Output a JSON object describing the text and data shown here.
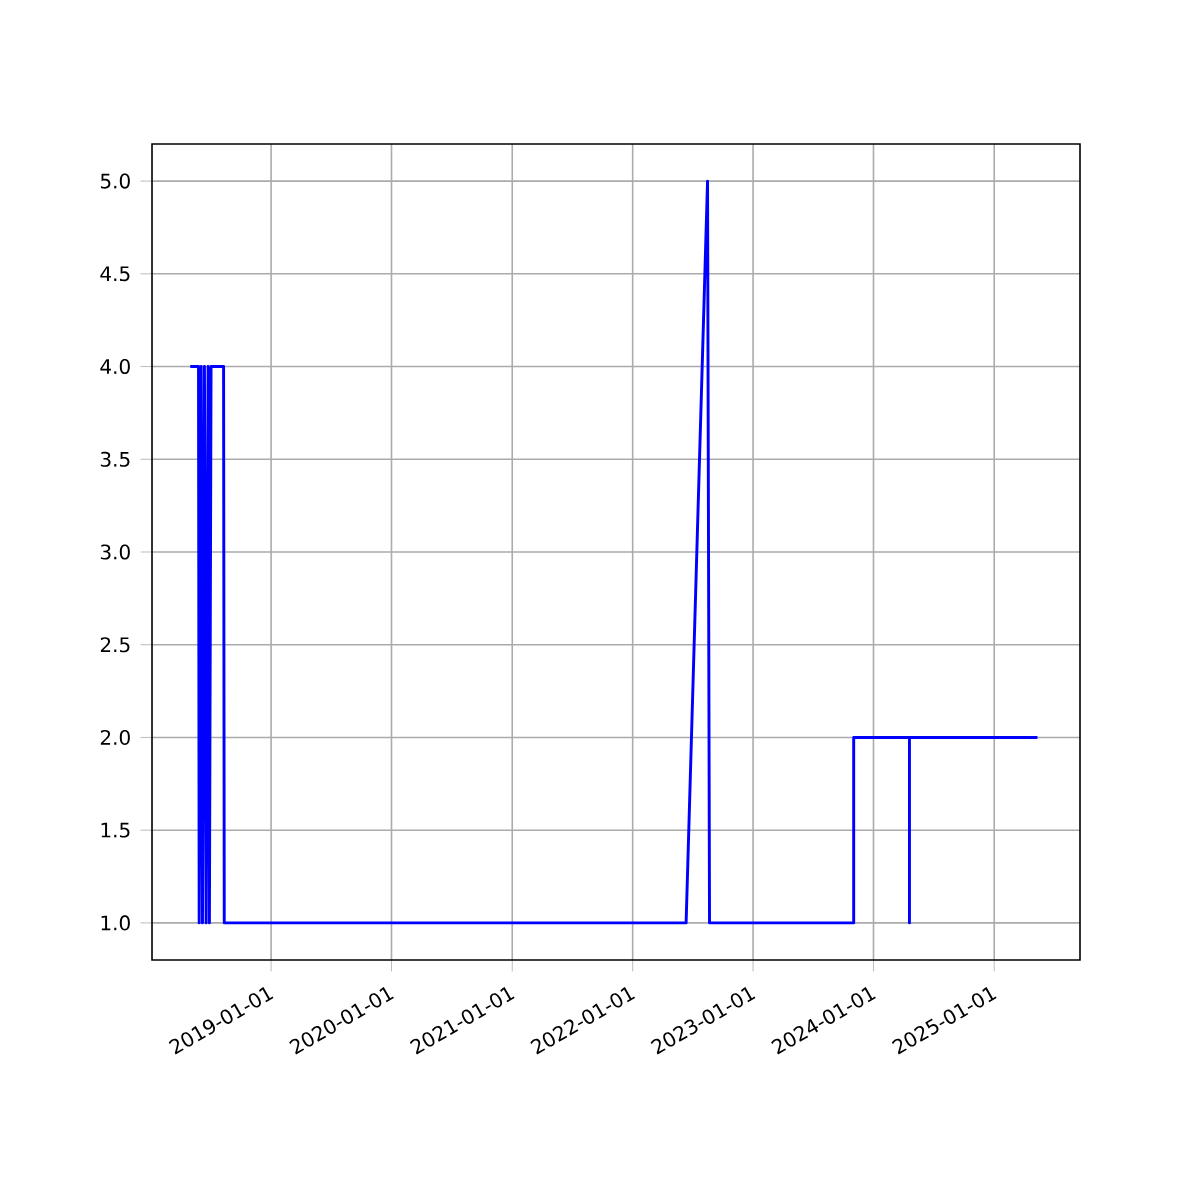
{
  "chart_data": {
    "type": "line",
    "color": "#0000ff",
    "grid": true,
    "x": [
      "2018-05-01",
      "2018-05-26",
      "2018-05-28",
      "2018-06-03",
      "2018-06-07",
      "2018-06-13",
      "2018-06-18",
      "2018-06-24",
      "2018-06-28",
      "2018-07-03",
      "2018-08-10",
      "2018-08-12",
      "2022-06-12",
      "2022-08-16",
      "2022-08-22",
      "2023-11-02",
      "2023-11-02",
      "2024-04-19",
      "2024-04-19",
      "2024-04-19",
      "2025-05-12"
    ],
    "values": [
      4,
      4,
      1,
      4,
      1,
      4,
      1,
      4,
      1,
      4,
      4,
      1,
      1,
      5,
      1,
      1,
      2,
      2,
      1,
      2,
      2
    ],
    "xlim": [
      "2018-01-05",
      "2025-09-18"
    ],
    "ylim": [
      0.8,
      5.2
    ],
    "xticks": [
      "2019-01-01",
      "2020-01-01",
      "2021-01-01",
      "2022-01-01",
      "2023-01-01",
      "2024-01-01",
      "2025-01-01"
    ],
    "yticks": [
      {
        "value": 1,
        "label": "1.0"
      },
      {
        "value": 1.5,
        "label": "1.5"
      },
      {
        "value": 2,
        "label": "2.0"
      },
      {
        "value": 2.5,
        "label": "2.5"
      },
      {
        "value": 3,
        "label": "3.0"
      },
      {
        "value": 3.5,
        "label": "3.5"
      },
      {
        "value": 4,
        "label": "4.0"
      },
      {
        "value": 4.5,
        "label": "4.5"
      },
      {
        "value": 5,
        "label": "5.0"
      }
    ],
    "marker": "none",
    "line_style": "solid"
  }
}
